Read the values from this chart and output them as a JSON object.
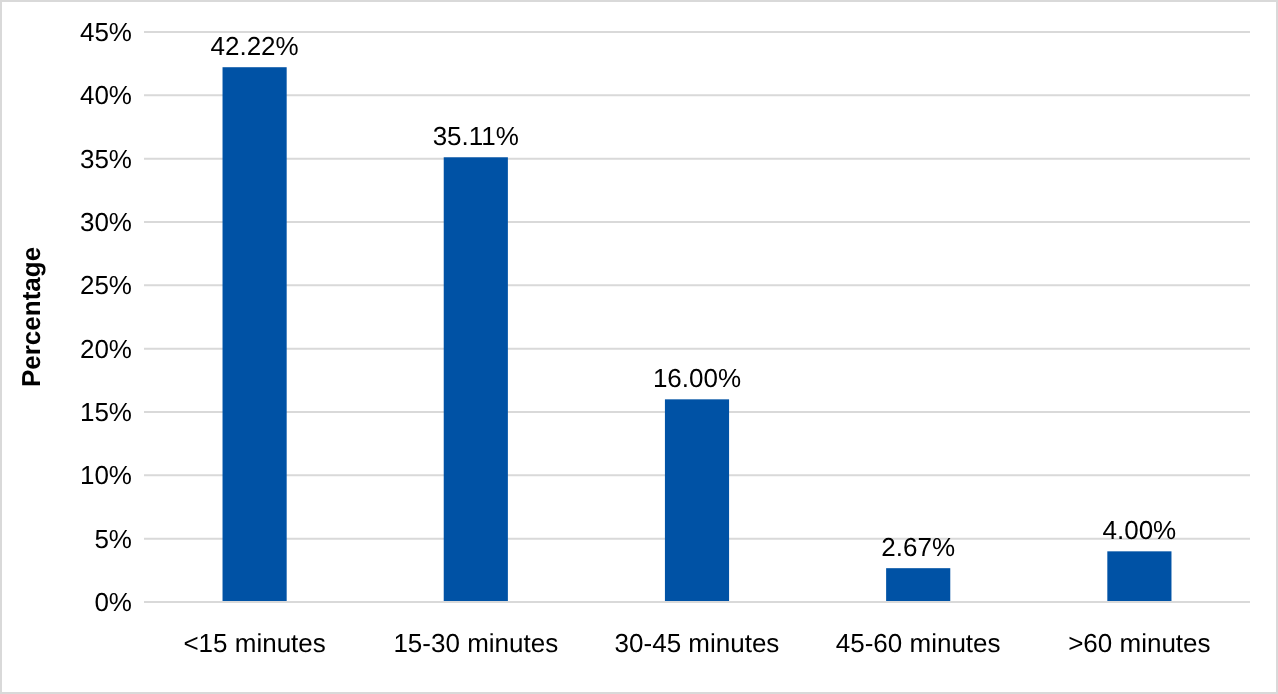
{
  "chart_data": {
    "type": "bar",
    "ylabel": "Percentage",
    "categories": [
      "<15 minutes",
      "15-30 minutes",
      "30-45 minutes",
      "45-60 minutes",
      ">60 minutes"
    ],
    "values": [
      42.22,
      35.11,
      16.0,
      2.67,
      4.0
    ],
    "value_labels": [
      "42.22%",
      "35.11%",
      "16.00%",
      "2.67%",
      "4.00%"
    ],
    "color": "#0052a5",
    "ylim": [
      0,
      45
    ],
    "yticks": [
      {
        "value": 0,
        "label": "0%"
      },
      {
        "value": 5,
        "label": "5%"
      },
      {
        "value": 10,
        "label": "10%"
      },
      {
        "value": 15,
        "label": "15%"
      },
      {
        "value": 20,
        "label": "20%"
      },
      {
        "value": 25,
        "label": "25%"
      },
      {
        "value": 30,
        "label": "30%"
      },
      {
        "value": 35,
        "label": "35%"
      },
      {
        "value": 40,
        "label": "40%"
      },
      {
        "value": 45,
        "label": "45%"
      }
    ],
    "grid": "y"
  }
}
